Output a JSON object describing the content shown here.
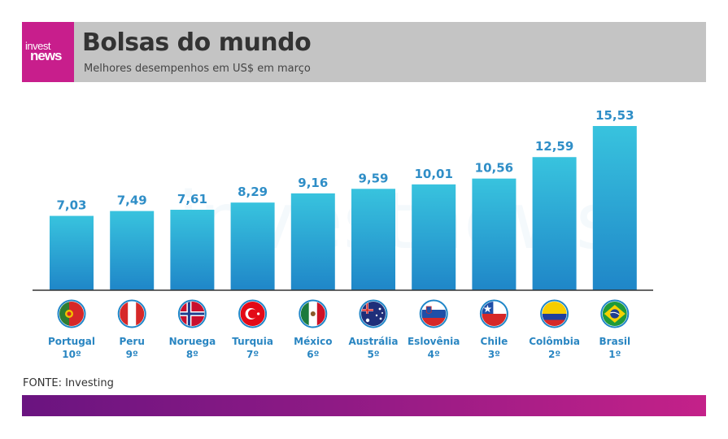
{
  "header": {
    "logo_line1": "invest",
    "logo_line2": "news",
    "title": "Bolsas do mundo",
    "subtitle": "Melhores desempenhos em US$ em março"
  },
  "watermark": "investnews",
  "source": "FONTE: Investing",
  "colors": {
    "bar_top": "#38c3de",
    "bar_bottom": "#1f86c8",
    "value": "#2f8ec7",
    "brand": "#c81e8c"
  },
  "chart_data": {
    "type": "bar",
    "title": "Bolsas do mundo",
    "subtitle": "Melhores desempenhos em US$ em março",
    "categories": [
      "Portugal",
      "Peru",
      "Noruega",
      "Turquia",
      "México",
      "Austrália",
      "Eslovênia",
      "Chile",
      "Colômbia",
      "Brasil"
    ],
    "ranks": [
      "10º",
      "9º",
      "8º",
      "7º",
      "6º",
      "5º",
      "4º",
      "3º",
      "2º",
      "1º"
    ],
    "values": [
      7.03,
      7.49,
      7.61,
      8.29,
      9.16,
      9.59,
      10.01,
      10.56,
      12.59,
      15.53
    ],
    "value_labels": [
      "7,03",
      "7,49",
      "7,61",
      "8,29",
      "9,16",
      "9,59",
      "10,01",
      "10,56",
      "12,59",
      "15,53"
    ],
    "flag_icons": [
      "portugal-flag-icon",
      "peru-flag-icon",
      "norway-flag-icon",
      "turkey-flag-icon",
      "mexico-flag-icon",
      "australia-flag-icon",
      "slovenia-flag-icon",
      "chile-flag-icon",
      "colombia-flag-icon",
      "brazil-flag-icon"
    ],
    "ylim": [
      0,
      15.53
    ],
    "grid": false,
    "legend": "none"
  }
}
